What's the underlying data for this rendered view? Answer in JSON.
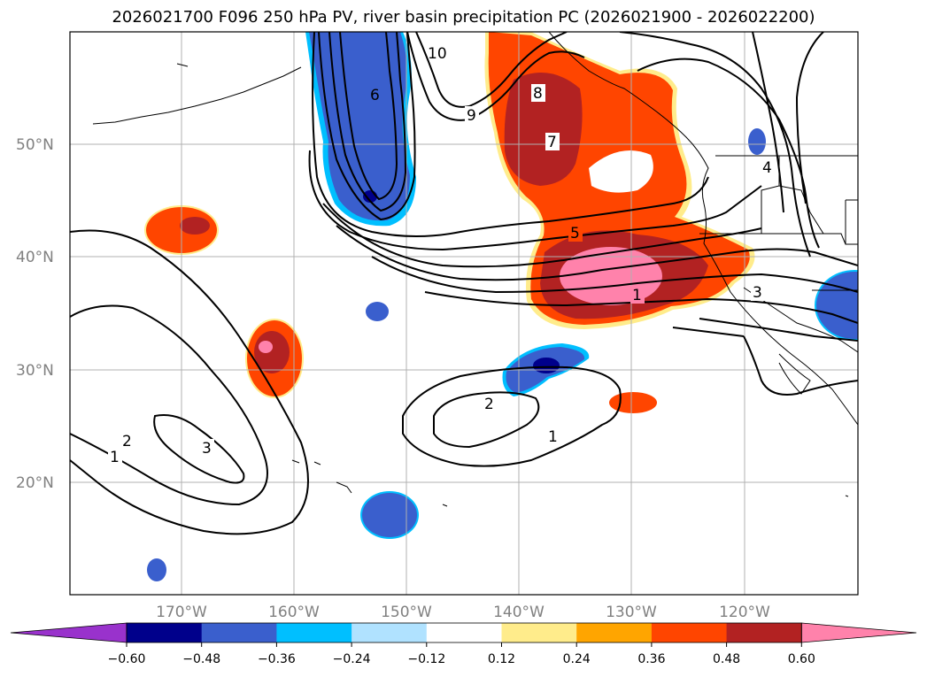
{
  "title": "2026021700 F096 250 hPa PV, river basin precipitation PC (2026021900 - 2026022200)",
  "lat_labels": [
    "50°N",
    "40°N",
    "30°N",
    "20°N"
  ],
  "lon_labels": [
    "170°W",
    "160°W",
    "150°W",
    "140°W",
    "130°W",
    "120°W"
  ],
  "pv_labels": [
    "10",
    "9",
    "8",
    "7",
    "6",
    "5",
    "4",
    "3",
    "2",
    "1"
  ],
  "colorbar": {
    "ticks": [
      "−0.60",
      "−0.48",
      "−0.36",
      "−0.24",
      "−0.12",
      "0.12",
      "0.24",
      "0.36",
      "0.48",
      "0.60"
    ],
    "colors": [
      "#9932cc",
      "#00008b",
      "#3a5fcd",
      "#00bfff",
      "#b0e2ff",
      "#ffffff",
      "#ffec8b",
      "#ffa500",
      "#ff4500",
      "#b22222",
      "#ff82ab"
    ]
  },
  "palette": {
    "neg_strong": "#00008b",
    "neg_mid": "#3a5fcd",
    "neg_light": "#00bfff",
    "pos_light": "#ffec8b",
    "pos_mid": "#ff4500",
    "pos_strong": "#b22222",
    "pos_max": "#ff82ab",
    "grid": "#b0b0b0",
    "contour": "#000000"
  }
}
